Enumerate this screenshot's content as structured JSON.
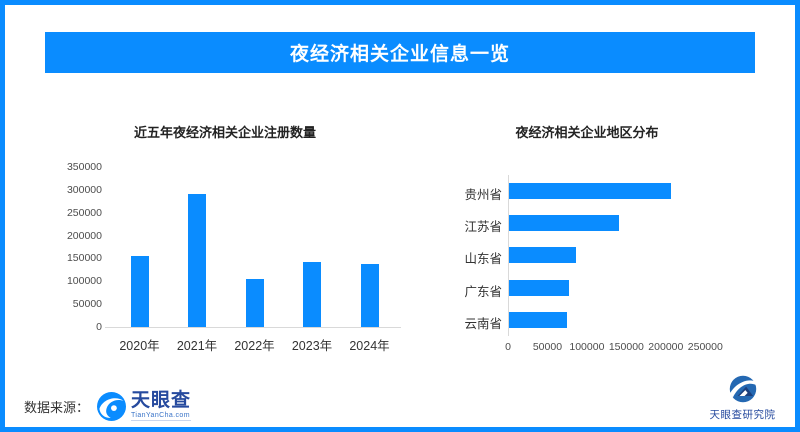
{
  "header": {
    "title": "夜经济相关企业信息一览"
  },
  "chart_data": [
    {
      "type": "bar",
      "title": "近五年夜经济相关企业注册数量",
      "categories": [
        "2020年",
        "2021年",
        "2022年",
        "2023年",
        "2024年"
      ],
      "values": [
        155000,
        290000,
        105000,
        142000,
        137000
      ],
      "xlabel": "",
      "ylabel": "",
      "ylim": [
        0,
        350000
      ],
      "yticks": [
        0,
        50000,
        100000,
        150000,
        200000,
        250000,
        300000,
        350000
      ],
      "grid": false,
      "legend": false,
      "bar_color": "#0a8cff"
    },
    {
      "type": "bar",
      "orientation": "horizontal",
      "title": "夜经济相关企业地区分布",
      "categories": [
        "贵州省",
        "江苏省",
        "山东省",
        "广东省",
        "云南省"
      ],
      "values": [
        205000,
        140000,
        85000,
        76000,
        74000
      ],
      "xlabel": "",
      "ylabel": "",
      "xlim": [
        0,
        250000
      ],
      "xticks": [
        0,
        50000,
        100000,
        150000,
        200000,
        250000
      ],
      "grid": false,
      "legend": false,
      "bar_color": "#0a8cff"
    }
  ],
  "footer": {
    "source_label": "数据来源：",
    "brand_name": "天眼查",
    "brand_domain": "TianYanCha.com",
    "institute_name": "天眼查研究院"
  },
  "colors": {
    "accent": "#0a8cff",
    "brand_navy": "#264a9e",
    "axis_line": "#d9d9d9"
  }
}
